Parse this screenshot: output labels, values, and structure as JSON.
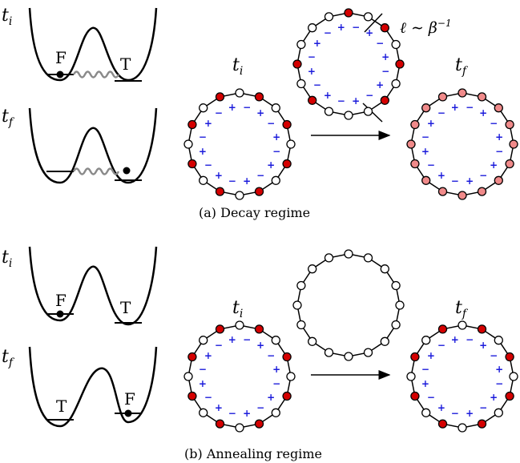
{
  "colors": {
    "red": "#d40000",
    "pink": "#f08a8a",
    "white": "#ffffff",
    "sign_blue": "#1a1adb",
    "wave_gray": "#8a8a8a"
  },
  "time_labels": {
    "initial": "t",
    "initial_sub": "i",
    "final": "t",
    "final_sub": "f"
  },
  "well_labels": {
    "false_vacuum": "F",
    "true_vacuum": "T"
  },
  "signs": {
    "plus": "+",
    "minus": "−"
  },
  "panels": [
    {
      "id": "decay",
      "caption": "(a) Decay regime",
      "length_annotation": "ℓ ∼ β",
      "length_exponent": "−1",
      "left_ring": [
        "w",
        "r",
        "w",
        "r",
        "w",
        "r",
        "w",
        "r",
        "w",
        "r",
        "w",
        "r",
        "w",
        "r",
        "w",
        "r"
      ],
      "middle_ring": [
        "r",
        "w",
        "r",
        "w",
        "r",
        "w",
        "r",
        "w",
        "w",
        "w",
        "r",
        "w",
        "r",
        "w",
        "w",
        "w"
      ],
      "right_ring": [
        "p",
        "p",
        "p",
        "p",
        "p",
        "p",
        "p",
        "p",
        "p",
        "p",
        "p",
        "p",
        "p",
        "p",
        "p",
        "p"
      ],
      "show_signs": true,
      "middle_signs": true
    },
    {
      "id": "annealing",
      "caption": "(b) Annealing regime",
      "left_ring": [
        "w",
        "r",
        "w",
        "r",
        "w",
        "r",
        "w",
        "r",
        "w",
        "r",
        "w",
        "r",
        "w",
        "r",
        "w",
        "r"
      ],
      "middle_ring": [
        "w",
        "w",
        "w",
        "w",
        "w",
        "w",
        "w",
        "w",
        "w",
        "w",
        "w",
        "w",
        "w",
        "w",
        "w",
        "w"
      ],
      "right_ring": [
        "w",
        "r",
        "w",
        "r",
        "w",
        "r",
        "w",
        "r",
        "w",
        "r",
        "w",
        "r",
        "w",
        "r",
        "w",
        "r"
      ],
      "show_signs": true,
      "middle_signs": false
    }
  ]
}
